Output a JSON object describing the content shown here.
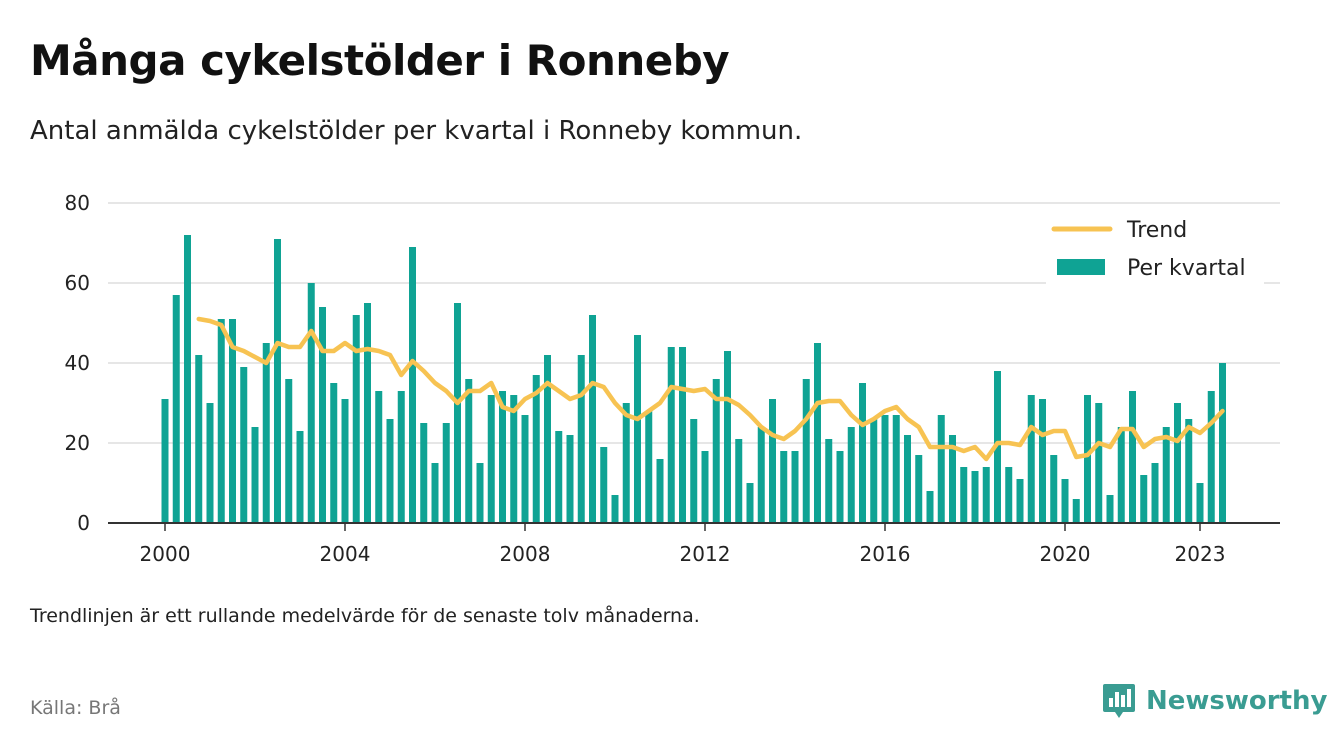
{
  "header": {
    "title": "Många cykelstölder i Ronneby",
    "subtitle": "Antal anmälda cykelstölder per kvartal i Ronneby kommun."
  },
  "footer": {
    "note": "Trendlinjen är ett rullande medelvärde för de senaste tolv månaderna.",
    "source": "Källa: Brå",
    "brand": "Newsworthy",
    "brand_icon": "bar-chart-badge-icon"
  },
  "colors": {
    "bar": "#0fa394",
    "trend": "#f7c352",
    "grid": "#dddddd",
    "axis": "#333333",
    "brand": "#3a9c92"
  },
  "chart_data": {
    "type": "bar",
    "x_start": "2000 Q1",
    "x_ticks": [
      "2000",
      "2004",
      "2008",
      "2012",
      "2016",
      "2020",
      "2023"
    ],
    "y_ticks": [
      0,
      20,
      40,
      60,
      80
    ],
    "ylim": [
      0,
      80
    ],
    "grid": true,
    "legend_position": "top-right",
    "series": [
      {
        "name": "Per kvartal",
        "type": "bar",
        "values": [
          31,
          57,
          72,
          42,
          30,
          51,
          51,
          39,
          24,
          45,
          71,
          36,
          23,
          60,
          54,
          35,
          31,
          52,
          55,
          33,
          26,
          33,
          69,
          25,
          15,
          25,
          55,
          36,
          15,
          32,
          33,
          32,
          27,
          37,
          42,
          23,
          22,
          42,
          52,
          19,
          7,
          30,
          47,
          28,
          16,
          44,
          44,
          26,
          18,
          36,
          43,
          21,
          10,
          24,
          31,
          18,
          18,
          36,
          45,
          21,
          18,
          24,
          35,
          26,
          27,
          27,
          22,
          17,
          8,
          27,
          22,
          14,
          13,
          14,
          38,
          14,
          11,
          32,
          31,
          17,
          11,
          6,
          32,
          30,
          7,
          24,
          33,
          12,
          15,
          24,
          30,
          26,
          10,
          33,
          40
        ]
      },
      {
        "name": "Trend",
        "type": "line",
        "values": [
          null,
          null,
          null,
          51,
          50.5,
          49.5,
          44,
          43,
          41.5,
          40,
          45,
          44,
          44,
          48,
          43,
          43,
          45,
          43,
          43.5,
          43,
          42,
          37,
          40.5,
          38,
          35,
          33,
          30,
          33,
          33,
          35,
          29,
          28,
          31,
          32.5,
          35,
          33,
          31,
          32,
          35,
          34,
          30,
          27,
          26,
          28,
          30,
          34,
          33.5,
          33,
          33.5,
          31,
          31,
          29.5,
          27,
          24,
          22,
          21,
          23,
          26,
          30,
          30.5,
          30.5,
          27,
          24.5,
          26,
          28,
          29,
          26,
          24,
          19,
          19,
          19,
          18,
          19,
          16,
          20,
          20,
          19.5,
          24,
          22,
          23,
          23,
          16.5,
          17,
          20,
          19,
          23.5,
          23.5,
          19,
          21,
          21.5,
          20.5,
          24,
          22.5,
          25,
          28
        ]
      }
    ]
  }
}
